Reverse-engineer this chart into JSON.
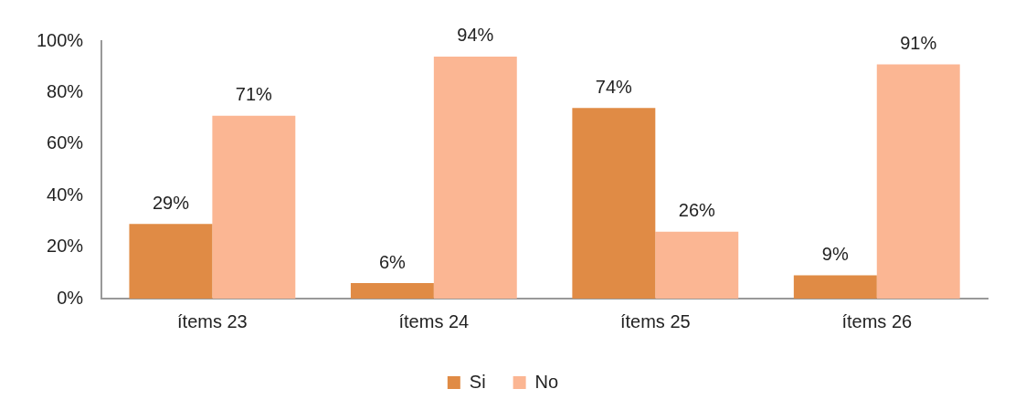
{
  "chart_data": {
    "type": "bar",
    "categories": [
      "ítems 23",
      "ítems 24",
      "ítems 25",
      "ítems 26"
    ],
    "series": [
      {
        "name": "Si",
        "color": "#e08b45",
        "values": [
          29,
          6,
          74,
          9
        ],
        "value_labels": [
          "29%",
          "6%",
          "74%",
          "9%"
        ]
      },
      {
        "name": "No",
        "color": "#fbb693",
        "values": [
          71,
          94,
          26,
          91
        ],
        "value_labels": [
          "71%",
          "94%",
          "26%",
          "91%"
        ]
      }
    ],
    "ylim": [
      0,
      100
    ],
    "yticks": [
      {
        "value": 0,
        "label": "0%"
      },
      {
        "value": 20,
        "label": "20%"
      },
      {
        "value": 40,
        "label": "40%"
      },
      {
        "value": 60,
        "label": "60%"
      },
      {
        "value": 80,
        "label": "80%"
      },
      {
        "value": 100,
        "label": "100%"
      }
    ],
    "grid": false,
    "legend": "bottom"
  }
}
